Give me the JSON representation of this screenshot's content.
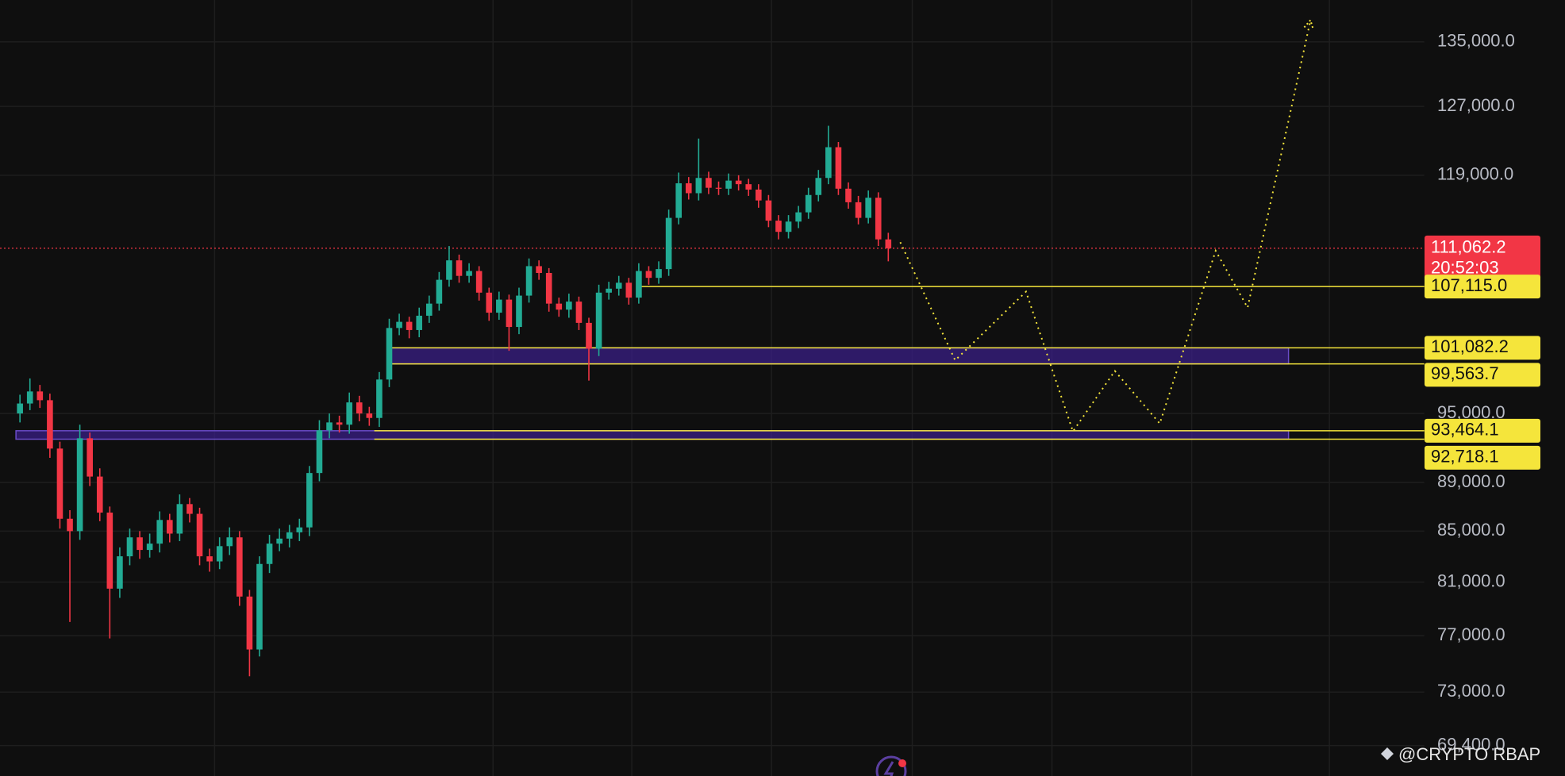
{
  "chart_data": {
    "type": "candlestick",
    "log_scale": true,
    "grid": true,
    "up_color": "#22ab94",
    "down_color": "#f23645",
    "level_color": "#f5e53b",
    "zone_color": "#3a1f86",
    "watermark": "@CRYPTO RBAP",
    "ylim": [
      67430,
      140450
    ],
    "yticks": [
      {
        "value": 135000,
        "label": "135,000.0"
      },
      {
        "value": 127000,
        "label": "127,000.0"
      },
      {
        "value": 119000,
        "label": "119,000.0"
      },
      {
        "value": 95000,
        "label": "95,000.0"
      },
      {
        "value": 89000,
        "label": "89,000.0"
      },
      {
        "value": 85000,
        "label": "85,000.0"
      },
      {
        "value": 81000,
        "label": "81,000.0"
      },
      {
        "value": 77000,
        "label": "77,000.0"
      },
      {
        "value": 73000,
        "label": "73,000.0"
      },
      {
        "value": 69400,
        "label": "69,400.0"
      }
    ],
    "open": [
      95000,
      95900,
      97000,
      96200,
      91900,
      86000,
      85000,
      92800,
      89500,
      86500,
      80500,
      83000,
      84500,
      83500,
      84000,
      85900,
      84800,
      87200,
      86400,
      83000,
      82600,
      83800,
      84500,
      79900,
      76000,
      82400,
      84000,
      84400,
      84900,
      85300,
      89800,
      93500,
      94200,
      94000,
      96000,
      95000,
      94600,
      98100,
      103000,
      103600,
      102800,
      104200,
      105400,
      107800,
      109800,
      108200,
      108700,
      106500,
      104500,
      105800,
      103100,
      106200,
      109200,
      108500,
      105400,
      104800,
      105600,
      103500,
      101000,
      106500,
      106900,
      107500,
      106000,
      108700,
      108000,
      108900,
      114300,
      118100,
      117000,
      118700,
      117600,
      117500,
      118400,
      118000,
      117400,
      116200,
      114000,
      112800,
      113900,
      114900,
      116800,
      118700,
      122200,
      117500,
      116000,
      114300,
      116500,
      112000
    ],
    "high": [
      96700,
      98200,
      97600,
      96800,
      92500,
      86700,
      94000,
      93300,
      90200,
      87000,
      83700,
      85200,
      85000,
      84800,
      86600,
      86400,
      88000,
      87700,
      86900,
      83600,
      84500,
      85300,
      85000,
      80400,
      83000,
      84700,
      85200,
      85500,
      86000,
      90400,
      94400,
      95000,
      94800,
      96900,
      96600,
      95600,
      98800,
      103900,
      104400,
      104100,
      105000,
      106200,
      108600,
      111300,
      110400,
      109500,
      109200,
      107000,
      106600,
      106300,
      107000,
      110000,
      109800,
      109000,
      106000,
      106400,
      106100,
      104000,
      107300,
      107600,
      108200,
      108000,
      109500,
      109200,
      109700,
      115200,
      119300,
      118800,
      123200,
      119400,
      118300,
      119200,
      119000,
      118600,
      118000,
      116800,
      114600,
      114600,
      115600,
      117600,
      119600,
      124700,
      122800,
      118200,
      116700,
      117300,
      117100,
      112700
    ],
    "low": [
      94200,
      95300,
      95500,
      91100,
      85200,
      78000,
      84300,
      88700,
      85800,
      76800,
      79800,
      82300,
      82800,
      82900,
      83300,
      84100,
      84200,
      85700,
      82300,
      81800,
      82000,
      83100,
      79200,
      74100,
      75500,
      81700,
      83400,
      83700,
      84200,
      84600,
      89100,
      92800,
      93300,
      93200,
      94300,
      93900,
      93800,
      97400,
      102300,
      102000,
      102100,
      103500,
      104700,
      107100,
      107500,
      107500,
      105700,
      103700,
      103800,
      100800,
      102400,
      105500,
      107800,
      104600,
      104100,
      104000,
      102800,
      98000,
      100300,
      105800,
      106200,
      105300,
      105400,
      107300,
      107400,
      108200,
      113600,
      116300,
      116200,
      116900,
      116800,
      116800,
      117300,
      116700,
      115400,
      113300,
      112000,
      112100,
      113200,
      114200,
      116100,
      118000,
      116800,
      115300,
      113600,
      113700,
      111300,
      109700
    ],
    "close": [
      95900,
      97000,
      96200,
      91900,
      86000,
      85000,
      92800,
      89500,
      86500,
      80500,
      83000,
      84500,
      83500,
      84000,
      85900,
      84800,
      87200,
      86400,
      83000,
      82600,
      83800,
      84500,
      79900,
      76000,
      82400,
      84000,
      84400,
      84900,
      85300,
      89800,
      93500,
      94200,
      94000,
      96000,
      95000,
      94600,
      98100,
      103000,
      103600,
      102800,
      104200,
      105400,
      107800,
      109800,
      108200,
      108700,
      106500,
      104500,
      105800,
      103100,
      106200,
      109200,
      108500,
      105400,
      104800,
      105600,
      103500,
      101000,
      106500,
      106900,
      107500,
      106000,
      108700,
      108000,
      108900,
      114300,
      118100,
      117000,
      118700,
      117600,
      117500,
      118400,
      118000,
      117400,
      116200,
      114000,
      112800,
      113900,
      114900,
      116800,
      118700,
      122200,
      117500,
      116000,
      114300,
      116500,
      112000,
      111062.2
    ],
    "last_price": {
      "value": 111062.2,
      "label": "111,062.2",
      "countdown": "20:52:03"
    },
    "levels": [
      {
        "value": 107115,
        "label": "107,115.0"
      }
    ],
    "zones": [
      {
        "high": {
          "value": 101082.2,
          "label": "101,082.2"
        },
        "low": {
          "value": 99563.7,
          "label": "99,563.7"
        }
      },
      {
        "high": {
          "value": 93464.1,
          "label": "93,464.1"
        },
        "low": {
          "value": 92718.1,
          "label": "92,718.1"
        }
      }
    ],
    "projection": {
      "x": [
        88.2,
        93.7,
        100.8,
        105.5,
        109.7,
        114.2,
        119.8,
        123,
        129.3
      ],
      "values": [
        111700,
        99900,
        106600,
        93400,
        98900,
        94100,
        110800,
        105000,
        137800
      ]
    }
  }
}
